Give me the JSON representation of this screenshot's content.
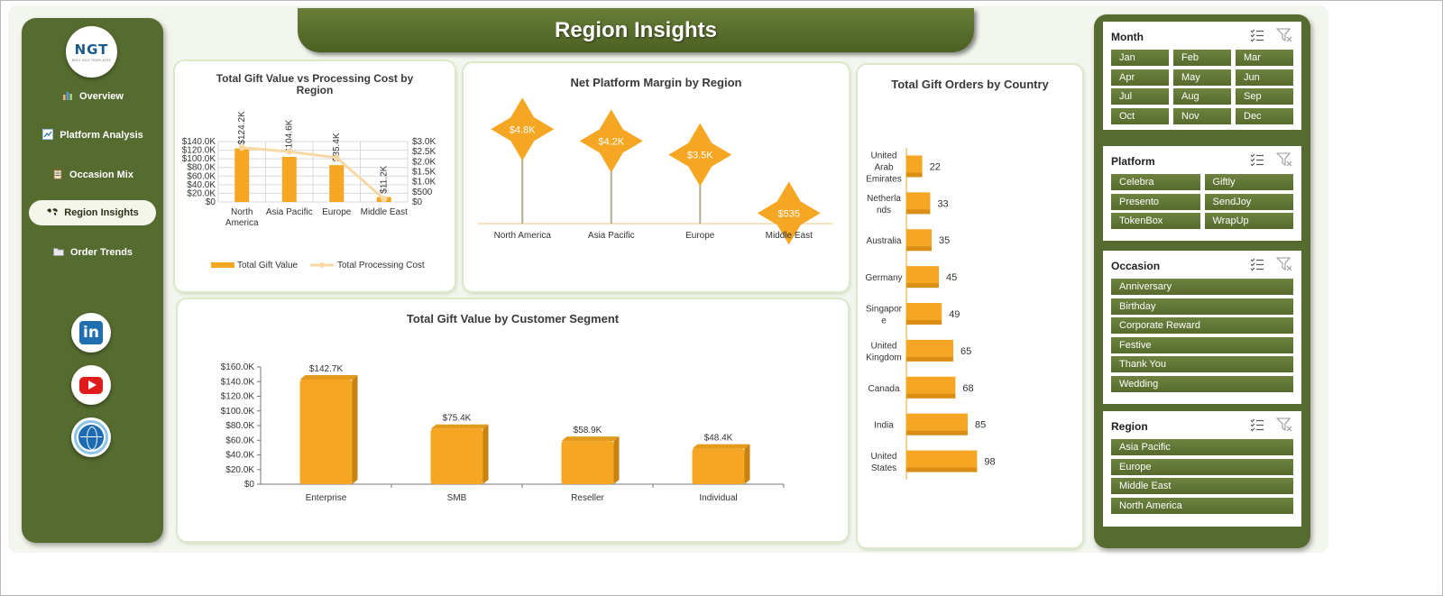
{
  "sidebar": {
    "logo": {
      "text": "NGT",
      "subtext": "BEST NGO TEMPLATES"
    },
    "items": [
      {
        "label": "Overview",
        "icon": "bar-chart-icon"
      },
      {
        "label": "Platform Analysis",
        "icon": "line-chart-icon"
      },
      {
        "label": "Occasion Mix",
        "icon": "clipboard-icon"
      },
      {
        "label": "Region Insights",
        "icon": "world-map-icon",
        "active": true
      },
      {
        "label": "Order Trends",
        "icon": "folder-icon"
      }
    ],
    "social": [
      {
        "name": "linkedin",
        "text": "in"
      },
      {
        "name": "youtube"
      },
      {
        "name": "website"
      }
    ]
  },
  "page": {
    "title": "Region Insights"
  },
  "colors": {
    "accent": "#556b2f",
    "bar": "#f5a623",
    "line": "#f8d9a6",
    "panel_bg": "#f3f6ee"
  },
  "charts": {
    "gift_vs_cost": {
      "title": "Total Gift Value vs Processing Cost by Region",
      "legend": [
        "Total Gift Value",
        "Total Processing Cost"
      ],
      "y_ticks": [
        "$140.0K",
        "$120.0K",
        "$100.0K",
        "$80.0K",
        "$60.0K",
        "$40.0K",
        "$20.0K",
        "$0"
      ],
      "y2_ticks": [
        "$3.0K",
        "$2.5K",
        "$2.0K",
        "$1.5K",
        "$1.0K",
        "$500",
        "$0"
      ]
    },
    "net_margin": {
      "title": "Net Platform Margin by Region"
    },
    "orders_by_country": {
      "title": "Total Gift Orders by Country"
    },
    "segment": {
      "title": "Total Gift Value by Customer Segment",
      "y_ticks": [
        "$160.0K",
        "$140.0K",
        "$120.0K",
        "$100.0K",
        "$80.0K",
        "$60.0K",
        "$40.0K",
        "$20.0K",
        "$0"
      ]
    }
  },
  "chart_data": [
    {
      "type": "bar",
      "title": "Total Gift Value vs Processing Cost by Region",
      "categories": [
        "North America",
        "Asia Pacific",
        "Europe",
        "Middle East"
      ],
      "series": [
        {
          "name": "Total Gift Value",
          "type": "bar",
          "values": [
            124200,
            104600,
            85400,
            11200
          ],
          "labels": [
            "$124.2K",
            "$104.6K",
            "$85.4K",
            "$11.2K"
          ]
        },
        {
          "name": "Total Processing Cost",
          "type": "line",
          "axis": "secondary",
          "values": [
            2700,
            2500,
            2200,
            150
          ]
        }
      ],
      "ylim": [
        0,
        140000
      ],
      "y2lim": [
        0,
        3000
      ],
      "grid": true,
      "legend": "bottom"
    },
    {
      "type": "scatter",
      "title": "Net Platform Margin by Region",
      "categories": [
        "North America",
        "Asia Pacific",
        "Europe",
        "Middle East"
      ],
      "values": [
        4800,
        4200,
        3500,
        535
      ],
      "labels": [
        "$4.8K",
        "$4.2K",
        "$3.5K",
        "$535"
      ],
      "ylim": [
        0,
        5500
      ]
    },
    {
      "type": "bar",
      "orientation": "horizontal",
      "title": "Total Gift Orders by Country",
      "categories": [
        "United Arab Emirates",
        "Netherlands",
        "Australia",
        "Germany",
        "Singapore",
        "United Kingdom",
        "Canada",
        "India",
        "United States"
      ],
      "category_labels": [
        [
          "United",
          "Arab",
          "Emirates"
        ],
        [
          "Netherla",
          "nds"
        ],
        [
          "Australia"
        ],
        [
          "Germany"
        ],
        [
          "Singapor",
          "e"
        ],
        [
          "United",
          "Kingdom"
        ],
        [
          "Canada"
        ],
        [
          "India"
        ],
        [
          "United",
          "States"
        ]
      ],
      "values": [
        22,
        33,
        35,
        45,
        49,
        65,
        68,
        85,
        98
      ],
      "xlim": [
        0,
        200
      ]
    },
    {
      "type": "bar",
      "title": "Total Gift Value by Customer Segment",
      "categories": [
        "Enterprise",
        "SMB",
        "Reseller",
        "Individual"
      ],
      "values": [
        142700,
        75400,
        58900,
        48400
      ],
      "labels": [
        "$142.7K",
        "$75.4K",
        "$58.9K",
        "$48.4K"
      ],
      "ylim": [
        0,
        160000
      ]
    }
  ],
  "slicers": [
    {
      "title": "Month",
      "columns": 3,
      "items": [
        "Jan",
        "Feb",
        "Mar",
        "Apr",
        "May",
        "Jun",
        "Jul",
        "Aug",
        "Sep",
        "Oct",
        "Nov",
        "Dec"
      ]
    },
    {
      "title": "Platform",
      "columns": 2,
      "items": [
        "Celebra",
        "Giftly",
        "Presento",
        "SendJoy",
        "TokenBox",
        "WrapUp"
      ]
    },
    {
      "title": "Occasion",
      "columns": 1,
      "items": [
        "Anniversary",
        "Birthday",
        "Corporate Reward",
        "Festive",
        "Thank You",
        "Wedding"
      ]
    },
    {
      "title": "Region",
      "columns": 1,
      "items": [
        "Asia Pacific",
        "Europe",
        "Middle East",
        "North America"
      ]
    }
  ]
}
